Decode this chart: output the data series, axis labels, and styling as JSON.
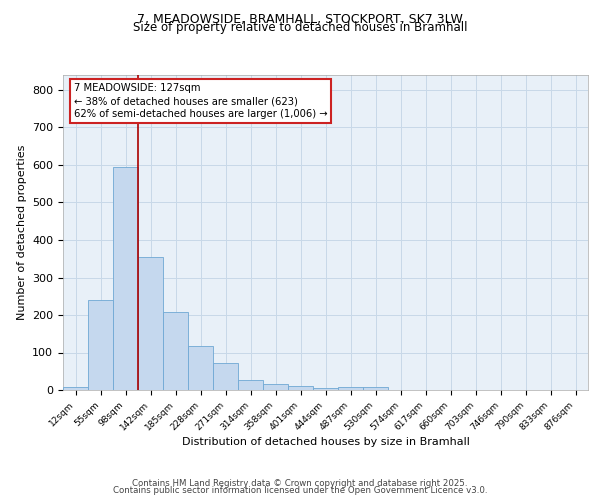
{
  "title1": "7, MEADOWSIDE, BRAMHALL, STOCKPORT, SK7 3LW",
  "title2": "Size of property relative to detached houses in Bramhall",
  "xlabel": "Distribution of detached houses by size in Bramhall",
  "ylabel": "Number of detached properties",
  "categories": [
    "12sqm",
    "55sqm",
    "98sqm",
    "142sqm",
    "185sqm",
    "228sqm",
    "271sqm",
    "314sqm",
    "358sqm",
    "401sqm",
    "444sqm",
    "487sqm",
    "530sqm",
    "574sqm",
    "617sqm",
    "660sqm",
    "703sqm",
    "746sqm",
    "790sqm",
    "833sqm",
    "876sqm"
  ],
  "values": [
    8,
    240,
    595,
    355,
    207,
    118,
    73,
    28,
    15,
    12,
    5,
    8,
    8,
    0,
    0,
    0,
    0,
    0,
    0,
    0,
    0
  ],
  "bar_color": "#c5d8ee",
  "bar_edge_color": "#6fa8d4",
  "vline_color": "#aa0000",
  "vline_x_index": 2.67,
  "annotation_text": "7 MEADOWSIDE: 127sqm\n← 38% of detached houses are smaller (623)\n62% of semi-detached houses are larger (1,006) →",
  "annotation_box_facecolor": "#ffffff",
  "annotation_box_edgecolor": "#cc2222",
  "ylim": [
    0,
    840
  ],
  "yticks": [
    0,
    100,
    200,
    300,
    400,
    500,
    600,
    700,
    800
  ],
  "grid_color": "#c8d8e8",
  "bg_color": "#e8f0f8",
  "footer1": "Contains HM Land Registry data © Crown copyright and database right 2025.",
  "footer2": "Contains public sector information licensed under the Open Government Licence v3.0."
}
